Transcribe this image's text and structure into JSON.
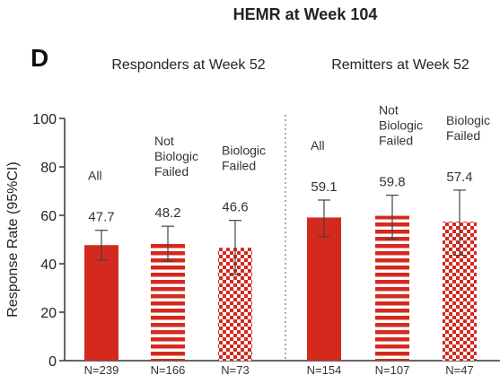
{
  "chart_data": {
    "type": "bar",
    "title": "HEMR at Week 104",
    "panel_label": "D",
    "ylabel": "Response Rate (95%CI)",
    "ylim": [
      0,
      100
    ],
    "yticks": [
      "0",
      "20",
      "40",
      "60",
      "80",
      "100"
    ],
    "yticks_values": [
      0,
      20,
      40,
      60,
      80,
      100
    ],
    "groups": [
      {
        "name": "Responders at Week 52",
        "bars": [
          {
            "label": [
              "All"
            ],
            "value": 47.7,
            "value_label": "47.7",
            "ci": [
              41.5,
              53.8
            ],
            "n": "N=239",
            "pattern": "solid"
          },
          {
            "label": [
              "Not",
              "Biologic",
              "Failed"
            ],
            "value": 48.2,
            "value_label": "48.2",
            "ci": [
              41.0,
              55.5
            ],
            "n": "N=166",
            "pattern": "stripes"
          },
          {
            "label": [
              "Biologic",
              "Failed"
            ],
            "value": 46.6,
            "value_label": "46.6",
            "ci": [
              35.6,
              57.9
            ],
            "n": "N=73",
            "pattern": "checks"
          }
        ]
      },
      {
        "name": "Remitters at Week 52",
        "bars": [
          {
            "label": [
              "All"
            ],
            "value": 59.1,
            "value_label": "59.1",
            "ci": [
              51.1,
              66.3
            ],
            "n": "N=154",
            "pattern": "solid"
          },
          {
            "label": [
              "Not",
              "Biologic",
              "Failed"
            ],
            "value": 59.8,
            "value_label": "59.8",
            "ci": [
              50.1,
              68.3
            ],
            "n": "N=107",
            "pattern": "stripes"
          },
          {
            "label": [
              "Biologic",
              "Failed"
            ],
            "value": 57.4,
            "value_label": "57.4",
            "ci": [
              43.5,
              70.4
            ],
            "n": "N=47",
            "pattern": "checks"
          }
        ]
      }
    ],
    "colors": {
      "bar": "#d42a1e",
      "error": "#444444",
      "axis": "#333333"
    }
  }
}
